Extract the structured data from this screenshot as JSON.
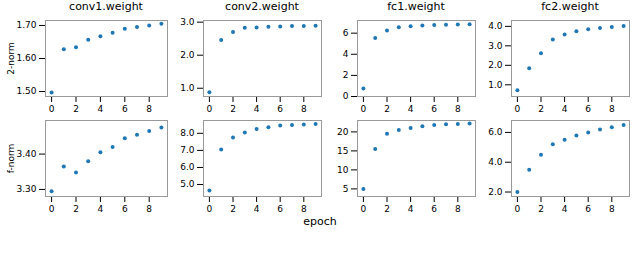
{
  "xlabel": "epoch",
  "chart_data": [
    {
      "type": "scatter",
      "title": "conv1.weight",
      "ylabel": "2-norm",
      "color": "#1f77b4",
      "x": [
        0,
        1,
        2,
        3,
        4,
        5,
        6,
        7,
        8,
        9
      ],
      "values": [
        1.497,
        1.628,
        1.634,
        1.657,
        1.667,
        1.678,
        1.69,
        1.695,
        1.7,
        1.705
      ],
      "xlim": [
        -0.5,
        9.5
      ],
      "xticks": [
        0,
        2,
        4,
        6,
        8
      ],
      "ylim": [
        1.485,
        1.715
      ],
      "yticks": [
        1.5,
        1.6,
        1.7
      ]
    },
    {
      "type": "scatter",
      "title": "conv2.weight",
      "color": "#1f77b4",
      "x": [
        0,
        1,
        2,
        3,
        4,
        5,
        6,
        7,
        8,
        9
      ],
      "values": [
        0.88,
        2.46,
        2.7,
        2.83,
        2.84,
        2.86,
        2.87,
        2.88,
        2.88,
        2.89
      ],
      "xlim": [
        -0.5,
        9.5
      ],
      "xticks": [
        0,
        2,
        4,
        6,
        8
      ],
      "ylim": [
        0.75,
        3.05
      ],
      "yticks": [
        1,
        2,
        3
      ]
    },
    {
      "type": "scatter",
      "title": "fc1.weight",
      "color": "#1f77b4",
      "x": [
        0,
        1,
        2,
        3,
        4,
        5,
        6,
        7,
        8,
        9
      ],
      "values": [
        0.75,
        5.55,
        6.25,
        6.55,
        6.65,
        6.72,
        6.77,
        6.8,
        6.82,
        6.84
      ],
      "xlim": [
        -0.5,
        9.5
      ],
      "xticks": [
        0,
        2,
        4,
        6,
        8
      ],
      "ylim": [
        0.0,
        7.2
      ],
      "yticks": [
        0,
        2,
        4,
        6
      ]
    },
    {
      "type": "scatter",
      "title": "fc2.weight",
      "color": "#1f77b4",
      "x": [
        0,
        1,
        2,
        3,
        4,
        5,
        6,
        7,
        8,
        9
      ],
      "values": [
        0.72,
        1.85,
        2.62,
        3.32,
        3.58,
        3.75,
        3.85,
        3.92,
        3.97,
        4.02
      ],
      "xlim": [
        -0.5,
        9.5
      ],
      "xticks": [
        0,
        2,
        4,
        6,
        8
      ],
      "ylim": [
        0.4,
        4.3
      ],
      "yticks": [
        1,
        2,
        3,
        4
      ]
    },
    {
      "type": "scatter",
      "ylabel": "f-norm",
      "color": "#1f77b4",
      "x": [
        0,
        1,
        2,
        3,
        4,
        5,
        6,
        7,
        8,
        9
      ],
      "values": [
        3.295,
        3.365,
        3.348,
        3.38,
        3.405,
        3.42,
        3.445,
        3.455,
        3.465,
        3.475
      ],
      "xlim": [
        -0.5,
        9.5
      ],
      "xticks": [
        0,
        2,
        4,
        6,
        8
      ],
      "ylim": [
        3.28,
        3.495
      ],
      "yticks": [
        3.3,
        3.4
      ]
    },
    {
      "type": "scatter",
      "color": "#1f77b4",
      "x": [
        0,
        1,
        2,
        3,
        4,
        5,
        6,
        7,
        8,
        9
      ],
      "values": [
        4.65,
        7.05,
        7.75,
        8.05,
        8.25,
        8.35,
        8.45,
        8.48,
        8.52,
        8.55
      ],
      "xlim": [
        -0.5,
        9.5
      ],
      "xticks": [
        0,
        2,
        4,
        6,
        8
      ],
      "ylim": [
        4.3,
        8.75
      ],
      "yticks": [
        5,
        6,
        7,
        8
      ]
    },
    {
      "type": "scatter",
      "color": "#1f77b4",
      "x": [
        0,
        1,
        2,
        3,
        4,
        5,
        6,
        7,
        8,
        9
      ],
      "values": [
        5.0,
        15.5,
        19.5,
        20.5,
        21.0,
        21.5,
        21.8,
        22.0,
        22.1,
        22.2
      ],
      "xlim": [
        -0.5,
        9.5
      ],
      "xticks": [
        0,
        2,
        4,
        6,
        8
      ],
      "ylim": [
        3.0,
        23.0
      ],
      "yticks": [
        5,
        10,
        15,
        20
      ]
    },
    {
      "type": "scatter",
      "color": "#1f77b4",
      "x": [
        0,
        1,
        2,
        3,
        4,
        5,
        6,
        7,
        8,
        9
      ],
      "values": [
        2.0,
        3.5,
        4.5,
        5.2,
        5.5,
        5.8,
        6.0,
        6.2,
        6.35,
        6.5
      ],
      "xlim": [
        -0.5,
        9.5
      ],
      "xticks": [
        0,
        2,
        4,
        6,
        8
      ],
      "ylim": [
        1.7,
        6.8
      ],
      "yticks": [
        2,
        4,
        6
      ]
    }
  ]
}
